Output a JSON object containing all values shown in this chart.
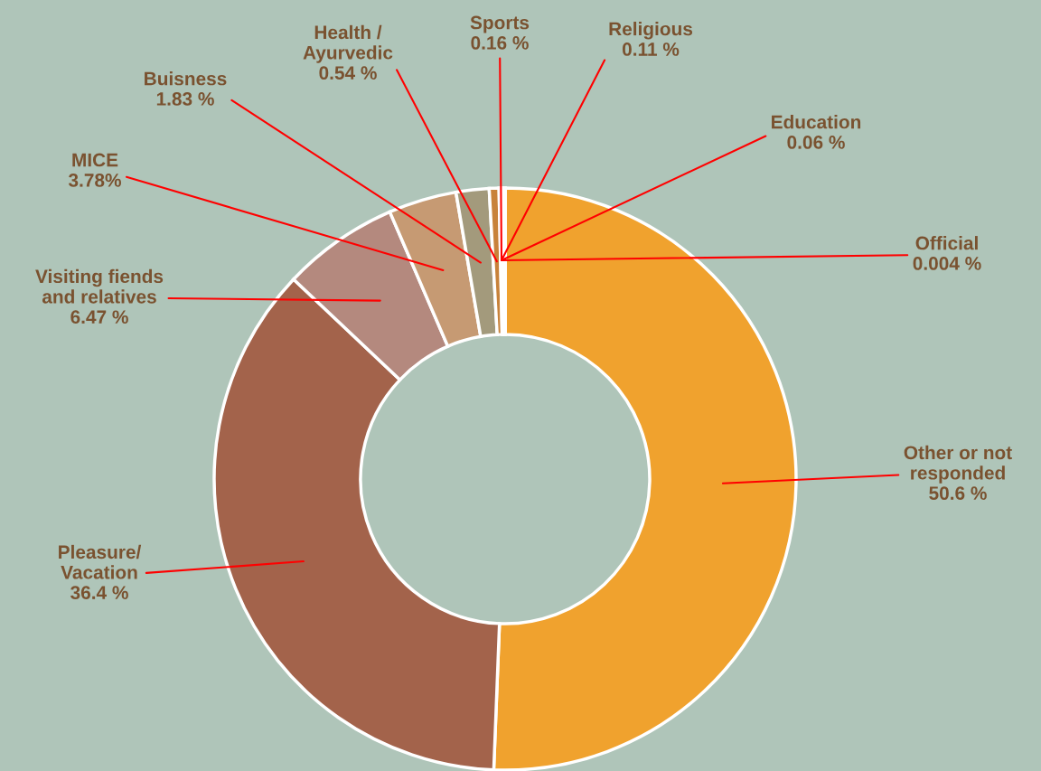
{
  "chart_data": {
    "type": "donut",
    "categories": [
      "Other or not\nresponded",
      "Pleasure/\nVacation",
      "Visiting fiends\nand relatives",
      "MICE",
      "Buisness",
      "Health /\nAyurvedic",
      "Sports",
      "Religious",
      "Education",
      "Official"
    ],
    "values": [
      50.6,
      36.4,
      6.47,
      3.78,
      1.83,
      0.54,
      0.16,
      0.11,
      0.06,
      0.004
    ],
    "value_labels": [
      "50.6 %",
      "36.4 %",
      "6.47 %",
      "3.78%",
      "1.83 %",
      "0.54 %",
      "0.16 %",
      "0.11 %",
      "0.06 %",
      "0.004 %"
    ],
    "colors": [
      "#f0a22e",
      "#a3634b",
      "#b4897e",
      "#c69a73",
      "#a39a7c",
      "#c8823a",
      "#e0b070",
      "#d9a86a",
      "#f2d6a8",
      "#ffffff"
    ],
    "legend": false
  }
}
